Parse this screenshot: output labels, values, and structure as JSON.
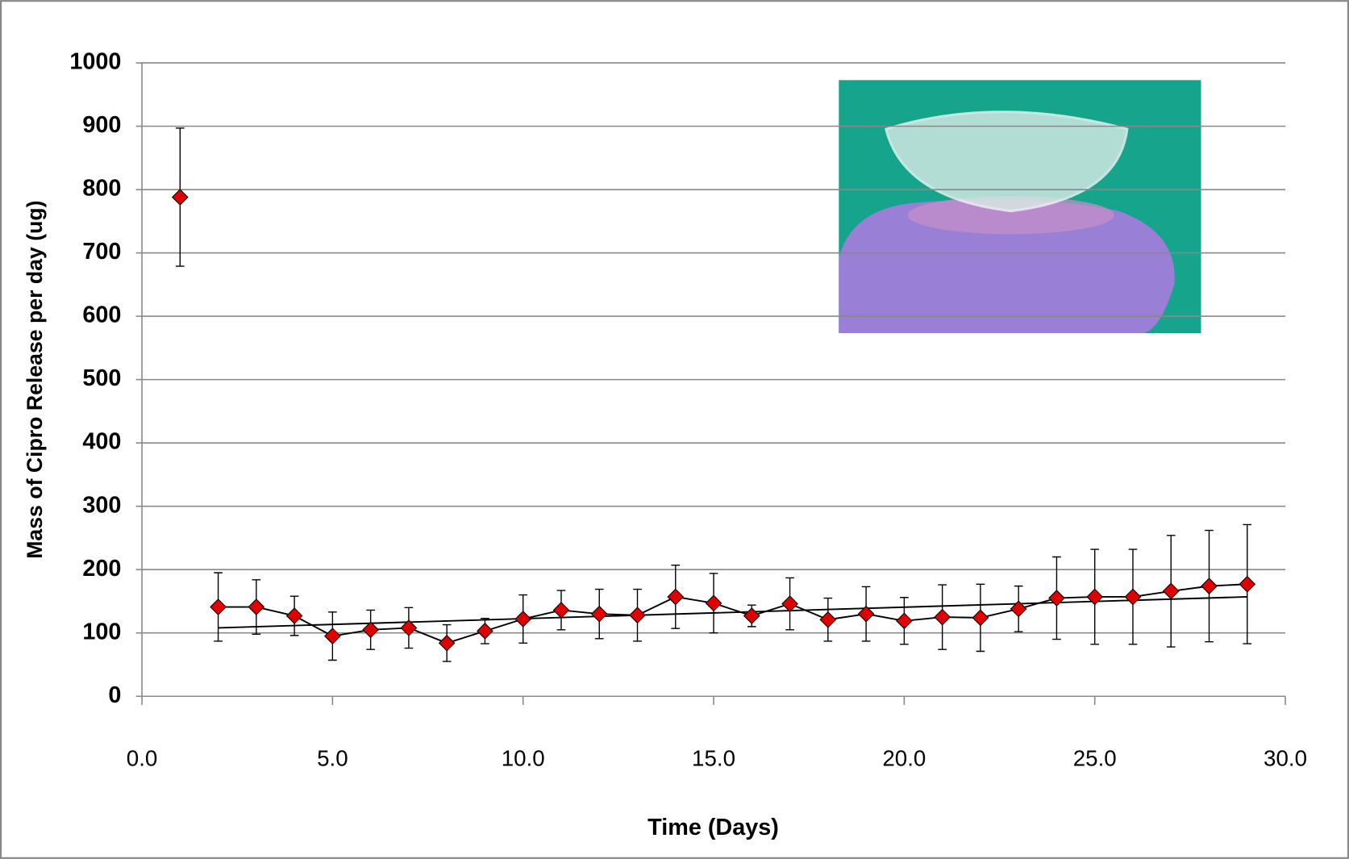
{
  "chart_data": {
    "type": "scatter",
    "y_label": "Mass of Cipro Release per day (ug)",
    "x_label": "Time (Days)",
    "xlim": [
      0,
      30
    ],
    "xticks": [
      {
        "value": 0,
        "label": "0.0"
      },
      {
        "value": 5,
        "label": "5.0"
      },
      {
        "value": 10,
        "label": "10.0"
      },
      {
        "value": 15,
        "label": "15.0"
      },
      {
        "value": 20,
        "label": "20.0"
      },
      {
        "value": 25,
        "label": "25.0"
      },
      {
        "value": 30,
        "label": "30.0"
      }
    ],
    "ylim": [
      0,
      1000
    ],
    "yticks": [
      0,
      100,
      200,
      300,
      400,
      500,
      600,
      700,
      800,
      900,
      1000
    ],
    "grid": true,
    "series": [
      {
        "x": [
          1
        ],
        "values": [
          788
        ],
        "errors": [
          109
        ],
        "color": "#e00000",
        "line": false
      },
      {
        "x": [
          2,
          3,
          4,
          5,
          6,
          7,
          8,
          9,
          10,
          11,
          12,
          13,
          14,
          15,
          16,
          17,
          18,
          19,
          20,
          21,
          22,
          23,
          24,
          25,
          26,
          27,
          28,
          29
        ],
        "values": [
          141,
          141,
          127,
          95,
          105,
          108,
          84,
          103,
          122,
          136,
          130,
          128,
          157,
          147,
          127,
          146,
          121,
          130,
          119,
          125,
          124,
          138,
          155,
          157,
          157,
          166,
          174,
          177
        ],
        "errors": [
          54,
          43,
          31,
          38,
          31,
          32,
          29,
          20,
          38,
          31,
          39,
          41,
          50,
          47,
          17,
          41,
          34,
          43,
          37,
          51,
          53,
          36,
          65,
          75,
          75,
          88,
          88,
          94
        ],
        "color": "#e00000",
        "line": true
      }
    ],
    "trendline": {
      "x": [
        2,
        29
      ],
      "values": [
        108,
        157
      ],
      "color": "#000000"
    }
  }
}
